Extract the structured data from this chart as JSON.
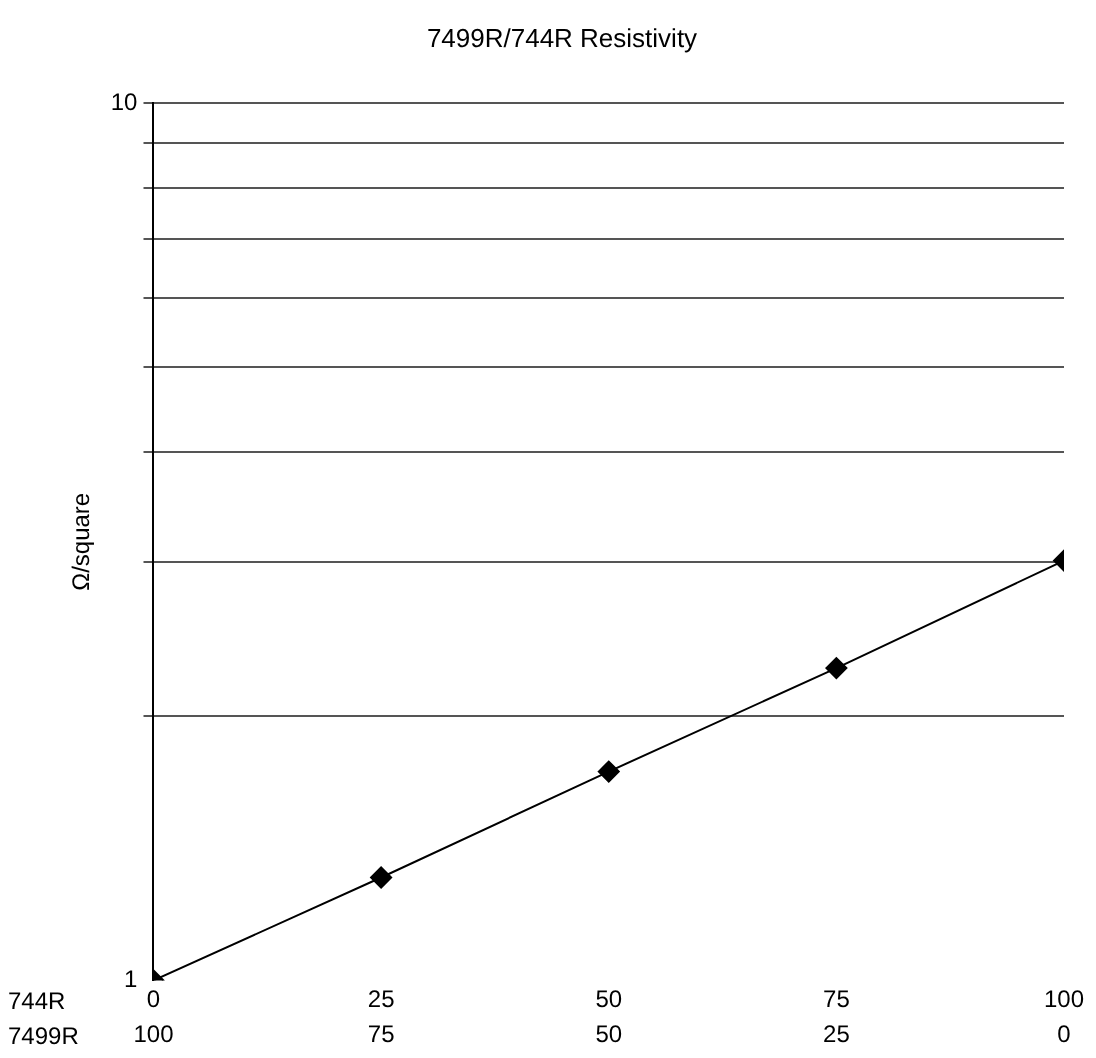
{
  "chart_data": {
    "type": "line",
    "title": "7499R/744R Resistivity",
    "ylabel": "Ω/square",
    "xlabel": "744R",
    "x2label": "7499R",
    "x": [
      0,
      25,
      50,
      75,
      100
    ],
    "series": [
      {
        "color": "#000000",
        "values": [
          1,
          1.31,
          1.73,
          2.27,
          3.01
        ]
      }
    ],
    "xlim": [
      0,
      100
    ],
    "xticks": [
      0,
      25,
      50,
      75,
      100
    ],
    "x2lim": [
      100,
      0
    ],
    "x2ticks": [
      100,
      75,
      50,
      25,
      0
    ],
    "ylim": [
      1,
      10
    ],
    "yticks": [
      1,
      {
        "value": 2,
        "label": null
      },
      {
        "value": 3,
        "label": null
      },
      {
        "value": 4,
        "label": null
      },
      {
        "value": 5,
        "label": null
      },
      {
        "value": 6,
        "label": null
      },
      {
        "value": 7,
        "label": null
      },
      {
        "value": 8,
        "label": null
      },
      {
        "value": 9,
        "label": null
      },
      10
    ],
    "log": "y",
    "grid": "y",
    "marker": "diamond",
    "line_style": "solid",
    "legend": false
  }
}
